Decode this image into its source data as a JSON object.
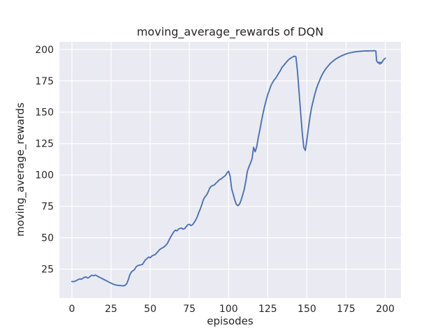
{
  "chart_data": {
    "type": "line",
    "title": "moving_average_rewards of DQN",
    "xlabel": "episodes",
    "ylabel": "moving_average_rewards",
    "xlim": [
      -8,
      210
    ],
    "ylim": [
      2,
      206
    ],
    "x_ticks": [
      0,
      25,
      50,
      75,
      100,
      125,
      150,
      175,
      200
    ],
    "y_ticks": [
      25,
      50,
      75,
      100,
      125,
      150,
      175,
      200
    ],
    "grid": true,
    "legend": "none",
    "style": {
      "figure_background": "#FFFFFF",
      "axes_background": "#EAEAF2",
      "grid_color": "#FFFFFF",
      "line_color": "#4C72B0",
      "text_color": "#262626"
    },
    "series": [
      {
        "name": "moving_average_rewards",
        "points": [
          [
            0,
            15.2
          ],
          [
            1,
            15.0
          ],
          [
            2,
            15.4
          ],
          [
            3,
            16.0
          ],
          [
            4,
            16.7
          ],
          [
            5,
            17.2
          ],
          [
            6,
            17.0
          ],
          [
            7,
            17.7
          ],
          [
            8,
            18.5
          ],
          [
            9,
            18.8
          ],
          [
            10,
            17.9
          ],
          [
            11,
            18.4
          ],
          [
            12,
            19.6
          ],
          [
            13,
            20.1
          ],
          [
            14,
            19.8
          ],
          [
            15,
            20.3
          ],
          [
            16,
            19.6
          ],
          [
            17,
            18.9
          ],
          [
            18,
            18.3
          ],
          [
            19,
            17.7
          ],
          [
            20,
            17.0
          ],
          [
            21,
            16.4
          ],
          [
            22,
            15.8
          ],
          [
            23,
            15.1
          ],
          [
            24,
            14.4
          ],
          [
            25,
            13.8
          ],
          [
            26,
            13.3
          ],
          [
            27,
            12.8
          ],
          [
            28,
            12.4
          ],
          [
            29,
            12.2
          ],
          [
            30,
            12.0
          ],
          [
            31,
            11.9
          ],
          [
            32,
            11.8
          ],
          [
            33,
            11.7
          ],
          [
            34,
            12.1
          ],
          [
            35,
            13.5
          ],
          [
            36,
            16.5
          ],
          [
            37,
            20.5
          ],
          [
            38,
            22.8
          ],
          [
            39,
            23.8
          ],
          [
            40,
            24.7
          ],
          [
            41,
            26.8
          ],
          [
            42,
            27.8
          ],
          [
            43,
            28.2
          ],
          [
            44,
            28.4
          ],
          [
            45,
            28.7
          ],
          [
            46,
            30.6
          ],
          [
            47,
            32.5
          ],
          [
            48,
            33.4
          ],
          [
            49,
            34.7
          ],
          [
            50,
            34.1
          ],
          [
            51,
            35.3
          ],
          [
            52,
            36.1
          ],
          [
            53,
            36.4
          ],
          [
            54,
            37.8
          ],
          [
            55,
            39.1
          ],
          [
            56,
            40.6
          ],
          [
            57,
            41.4
          ],
          [
            58,
            42.1
          ],
          [
            59,
            42.9
          ],
          [
            60,
            44.1
          ],
          [
            61,
            45.6
          ],
          [
            62,
            48.1
          ],
          [
            63,
            50.6
          ],
          [
            64,
            52.6
          ],
          [
            65,
            54.6
          ],
          [
            66,
            56.1
          ],
          [
            67,
            55.5
          ],
          [
            68,
            56.9
          ],
          [
            69,
            57.4
          ],
          [
            70,
            57.7
          ],
          [
            71,
            56.8
          ],
          [
            72,
            57.3
          ],
          [
            73,
            58.9
          ],
          [
            74,
            60.3
          ],
          [
            75,
            60.7
          ],
          [
            76,
            59.7
          ],
          [
            77,
            60.4
          ],
          [
            78,
            62.1
          ],
          [
            79,
            64.1
          ],
          [
            80,
            66.6
          ],
          [
            81,
            70.1
          ],
          [
            82,
            73.1
          ],
          [
            83,
            76.6
          ],
          [
            84,
            80.6
          ],
          [
            85,
            82.6
          ],
          [
            86,
            84.1
          ],
          [
            87,
            86.6
          ],
          [
            88,
            89.6
          ],
          [
            89,
            91.1
          ],
          [
            90,
            91.6
          ],
          [
            91,
            92.1
          ],
          [
            92,
            93.6
          ],
          [
            93,
            94.6
          ],
          [
            94,
            96.1
          ],
          [
            95,
            96.6
          ],
          [
            96,
            97.6
          ],
          [
            97,
            98.6
          ],
          [
            98,
            99.6
          ],
          [
            99,
            101.6
          ],
          [
            100,
            103.0
          ],
          [
            101,
            99.0
          ],
          [
            102,
            89.0
          ],
          [
            103,
            84.5
          ],
          [
            104,
            80.0
          ],
          [
            105,
            76.5
          ],
          [
            106,
            75.5
          ],
          [
            107,
            76.8
          ],
          [
            108,
            80.0
          ],
          [
            109,
            84.0
          ],
          [
            110,
            88.5
          ],
          [
            111,
            95.0
          ],
          [
            112,
            103.0
          ],
          [
            113,
            106.5
          ],
          [
            114,
            109.5
          ],
          [
            115,
            113.0
          ],
          [
            116,
            122.0
          ],
          [
            117,
            118.5
          ],
          [
            118,
            122.5
          ],
          [
            119,
            130.0
          ],
          [
            120,
            136.0
          ],
          [
            121,
            143.0
          ],
          [
            122,
            149.0
          ],
          [
            123,
            154.5
          ],
          [
            124,
            159.5
          ],
          [
            125,
            164.0
          ],
          [
            126,
            167.5
          ],
          [
            127,
            171.0
          ],
          [
            128,
            173.5
          ],
          [
            129,
            175.5
          ],
          [
            130,
            177.0
          ],
          [
            131,
            179.0
          ],
          [
            132,
            181.0
          ],
          [
            133,
            183.0
          ],
          [
            134,
            185.5
          ],
          [
            135,
            187.0
          ],
          [
            136,
            188.5
          ],
          [
            137,
            190.0
          ],
          [
            138,
            191.5
          ],
          [
            139,
            192.5
          ],
          [
            140,
            193.3
          ],
          [
            141,
            194.0
          ],
          [
            142,
            194.6
          ],
          [
            143,
            194.1
          ],
          [
            144,
            182.0
          ],
          [
            145,
            166.0
          ],
          [
            146,
            150.0
          ],
          [
            147,
            134.0
          ],
          [
            148,
            122.0
          ],
          [
            149,
            119.5
          ],
          [
            150,
            128.0
          ],
          [
            151,
            138.0
          ],
          [
            152,
            146.5
          ],
          [
            153,
            153.5
          ],
          [
            154,
            159.0
          ],
          [
            155,
            164.0
          ],
          [
            156,
            168.5
          ],
          [
            157,
            172.0
          ],
          [
            158,
            175.0
          ],
          [
            159,
            178.0
          ],
          [
            160,
            180.5
          ],
          [
            161,
            182.5
          ],
          [
            162,
            184.5
          ],
          [
            163,
            186.0
          ],
          [
            164,
            187.5
          ],
          [
            165,
            189.0
          ],
          [
            166,
            190.0
          ],
          [
            167,
            191.0
          ],
          [
            168,
            192.0
          ],
          [
            169,
            192.8
          ],
          [
            170,
            193.5
          ],
          [
            171,
            194.2
          ],
          [
            172,
            194.8
          ],
          [
            173,
            195.4
          ],
          [
            174,
            195.9
          ],
          [
            175,
            196.4
          ],
          [
            176,
            196.8
          ],
          [
            177,
            197.1
          ],
          [
            178,
            197.4
          ],
          [
            179,
            197.7
          ],
          [
            180,
            197.9
          ],
          [
            181,
            198.1
          ],
          [
            182,
            198.3
          ],
          [
            183,
            198.4
          ],
          [
            184,
            198.5
          ],
          [
            185,
            198.6
          ],
          [
            186,
            198.7
          ],
          [
            187,
            198.7
          ],
          [
            188,
            198.8
          ],
          [
            189,
            198.8
          ],
          [
            190,
            198.9
          ],
          [
            191,
            198.9
          ],
          [
            192,
            198.9
          ],
          [
            193,
            199.0
          ],
          [
            194,
            198.8
          ],
          [
            194.5,
            190.8
          ],
          [
            195.5,
            189.2
          ],
          [
            196,
            189.9
          ],
          [
            196.5,
            188.3
          ],
          [
            197.2,
            189.7
          ],
          [
            197.6,
            189.0
          ],
          [
            198.2,
            190.3
          ],
          [
            199,
            191.8
          ],
          [
            200,
            193.0
          ]
        ]
      }
    ]
  }
}
